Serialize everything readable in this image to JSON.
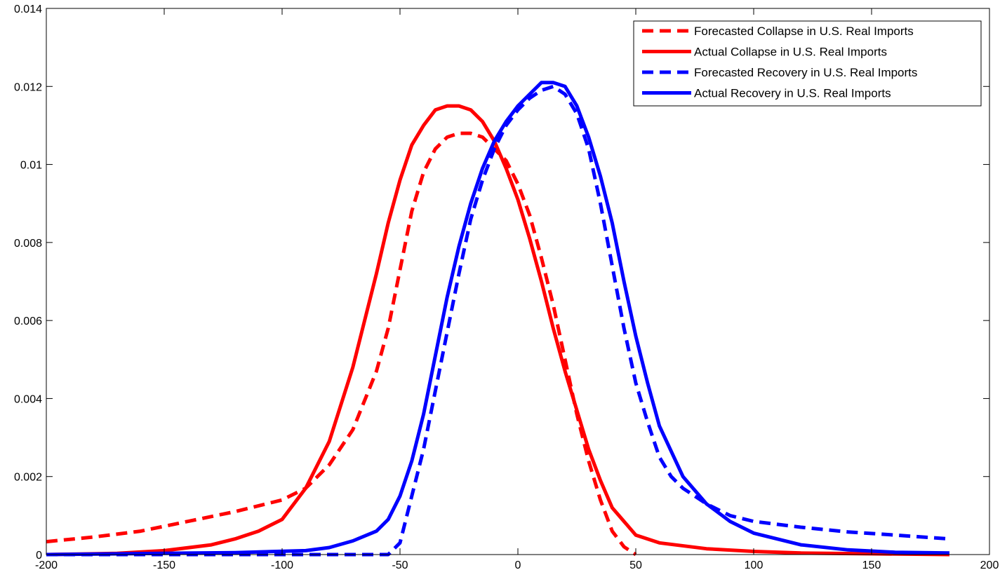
{
  "chart_data": {
    "type": "line",
    "title": "",
    "xlabel": "",
    "ylabel": "",
    "xlim": [
      -200,
      200
    ],
    "ylim": [
      0,
      0.014
    ],
    "xticks": [
      -200,
      -150,
      -100,
      -50,
      0,
      50,
      100,
      150,
      200
    ],
    "xtick_labels": [
      "-200",
      "-150",
      "-100",
      "-50",
      "0",
      "50",
      "100",
      "150",
      "200"
    ],
    "yticks": [
      0,
      0.002,
      0.004,
      0.006,
      0.008,
      0.01,
      0.012,
      0.014
    ],
    "ytick_labels": [
      "0",
      "0.002",
      "0.004",
      "0.006",
      "0.008",
      "0.01",
      "0.012",
      "0.014"
    ],
    "grid": false,
    "legend_position": "top-right",
    "series": [
      {
        "name": "Forecasted Collapse in U.S. Real Imports",
        "color": "#ff0000",
        "style": "dashed",
        "x": [
          -200,
          -180,
          -160,
          -140,
          -120,
          -100,
          -90,
          -80,
          -70,
          -60,
          -55,
          -50,
          -45,
          -40,
          -35,
          -30,
          -25,
          -20,
          -15,
          -10,
          -5,
          0,
          5,
          10,
          15,
          20,
          25,
          30,
          35,
          40,
          45,
          50
        ],
        "y": [
          0.00033,
          0.00045,
          0.0006,
          0.00085,
          0.0011,
          0.0014,
          0.0017,
          0.0023,
          0.0032,
          0.0047,
          0.0058,
          0.0073,
          0.0088,
          0.0098,
          0.0104,
          0.0107,
          0.0108,
          0.0108,
          0.0107,
          0.0104,
          0.0101,
          0.0095,
          0.0087,
          0.0076,
          0.0064,
          0.005,
          0.0036,
          0.0024,
          0.0014,
          0.0006,
          0.0002,
          0.0
        ]
      },
      {
        "name": "Actual Collapse in U.S. Real Imports",
        "color": "#ff0000",
        "style": "solid",
        "x": [
          -200,
          -170,
          -150,
          -130,
          -120,
          -110,
          -100,
          -90,
          -80,
          -70,
          -65,
          -60,
          -55,
          -50,
          -45,
          -40,
          -35,
          -30,
          -25,
          -20,
          -15,
          -10,
          -5,
          0,
          5,
          10,
          15,
          20,
          25,
          30,
          35,
          40,
          50,
          60,
          80,
          100,
          120,
          150,
          183
        ],
        "y": [
          0.0,
          3e-05,
          0.0001,
          0.00025,
          0.0004,
          0.0006,
          0.0009,
          0.0017,
          0.0029,
          0.0048,
          0.006,
          0.0072,
          0.0085,
          0.0096,
          0.0105,
          0.011,
          0.0114,
          0.0115,
          0.0115,
          0.0114,
          0.0111,
          0.0106,
          0.0099,
          0.0091,
          0.0081,
          0.007,
          0.0058,
          0.0047,
          0.0037,
          0.0027,
          0.0019,
          0.0012,
          0.0005,
          0.0003,
          0.00015,
          8e-05,
          4e-05,
          2e-05,
          0.0
        ]
      },
      {
        "name": "Forecasted Recovery in U.S. Real Imports",
        "color": "#0000ff",
        "style": "dashed",
        "x": [
          -200,
          -100,
          -55,
          -50,
          -45,
          -40,
          -35,
          -30,
          -25,
          -20,
          -15,
          -10,
          -5,
          0,
          5,
          10,
          15,
          20,
          25,
          30,
          35,
          40,
          45,
          50,
          55,
          60,
          65,
          70,
          80,
          90,
          100,
          120,
          140,
          160,
          183
        ],
        "y": [
          0.0,
          0.0,
          0.0,
          0.0003,
          0.0015,
          0.0027,
          0.0042,
          0.0057,
          0.0072,
          0.0086,
          0.0096,
          0.0104,
          0.011,
          0.0114,
          0.0117,
          0.0119,
          0.012,
          0.0118,
          0.0113,
          0.0104,
          0.009,
          0.0074,
          0.0058,
          0.0044,
          0.0034,
          0.0025,
          0.002,
          0.0017,
          0.0013,
          0.001,
          0.00085,
          0.0007,
          0.00058,
          0.0005,
          0.0004
        ]
      },
      {
        "name": "Actual Recovery in U.S. Real Imports",
        "color": "#0000ff",
        "style": "solid",
        "x": [
          -200,
          -120,
          -90,
          -80,
          -70,
          -60,
          -55,
          -50,
          -45,
          -40,
          -35,
          -30,
          -25,
          -20,
          -15,
          -10,
          -5,
          0,
          5,
          10,
          15,
          20,
          25,
          30,
          35,
          40,
          45,
          50,
          55,
          60,
          70,
          80,
          90,
          100,
          120,
          140,
          160,
          183
        ],
        "y": [
          0.0,
          5e-05,
          0.0001,
          0.00018,
          0.00035,
          0.0006,
          0.0009,
          0.0015,
          0.0024,
          0.0036,
          0.0051,
          0.0066,
          0.0079,
          0.009,
          0.0099,
          0.0106,
          0.0111,
          0.0115,
          0.0118,
          0.0121,
          0.0121,
          0.012,
          0.0115,
          0.0107,
          0.0097,
          0.0085,
          0.007,
          0.0056,
          0.0044,
          0.0033,
          0.002,
          0.0013,
          0.00085,
          0.00055,
          0.00025,
          0.00012,
          6e-05,
          4e-05
        ]
      }
    ]
  }
}
